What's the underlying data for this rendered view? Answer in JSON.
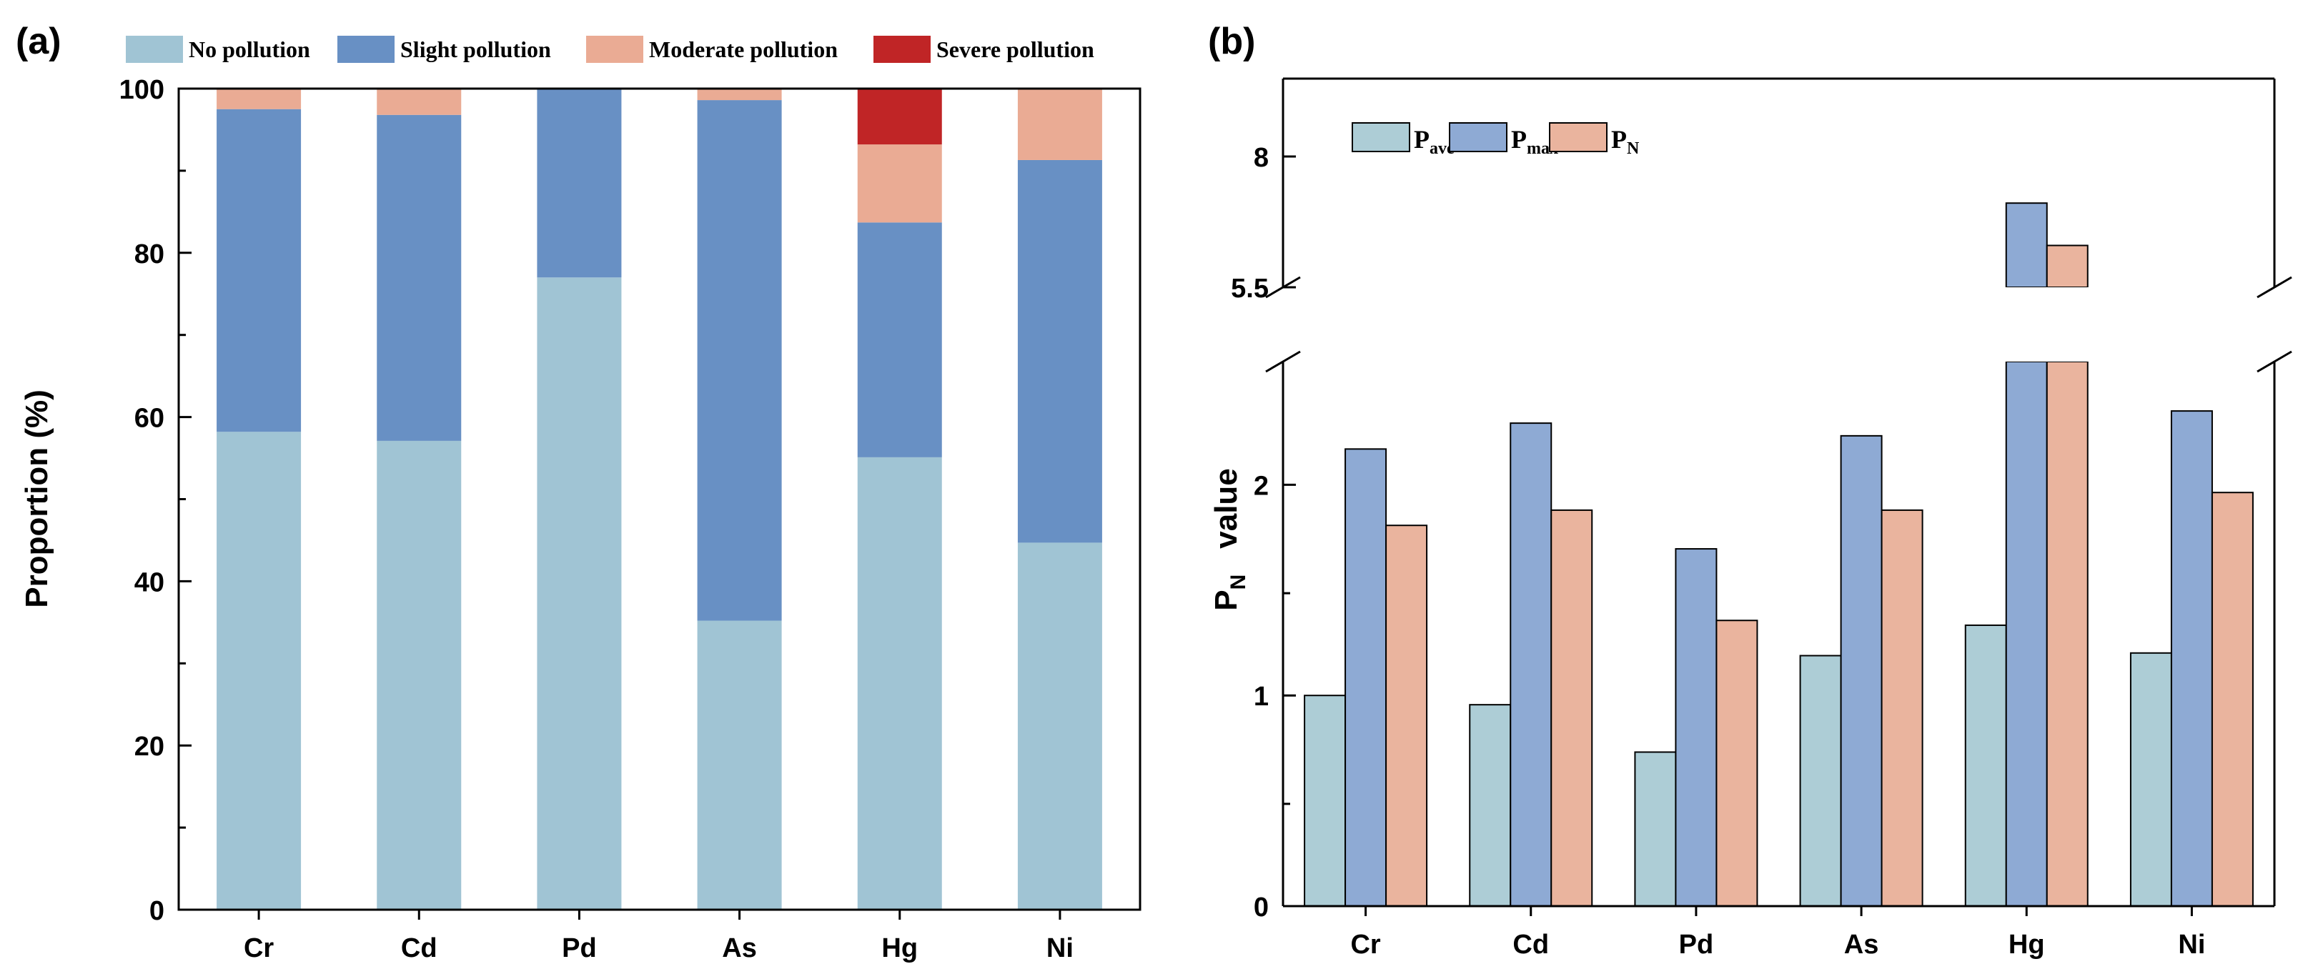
{
  "panels": {
    "a": {
      "label": "(a)"
    },
    "b": {
      "label": "(b)"
    }
  },
  "chart_data": [
    {
      "type": "bar",
      "stacked": true,
      "panel": "a",
      "title": "",
      "xlabel": "",
      "ylabel": "Proportion (%)",
      "ylim": [
        0,
        100
      ],
      "yticks": [
        0,
        20,
        40,
        60,
        80,
        100
      ],
      "grid": false,
      "legend_position": "top",
      "categories": [
        "Cr",
        "Cd",
        "Pd",
        "As",
        "Hg",
        "Ni"
      ],
      "series": [
        {
          "name": "No pollution",
          "color": "#a0c4d4",
          "values": [
            58.2,
            57.1,
            77.0,
            35.2,
            55.1,
            44.7
          ]
        },
        {
          "name": "Slight pollution",
          "color": "#6890c4",
          "values": [
            39.3,
            39.7,
            23.0,
            63.4,
            28.6,
            46.6
          ]
        },
        {
          "name": "Moderate pollution",
          "color": "#eaab94",
          "values": [
            2.5,
            3.2,
            0.0,
            1.4,
            9.5,
            8.7
          ]
        },
        {
          "name": "Severe pollution",
          "color": "#c02526",
          "values": [
            0.0,
            0.0,
            0.0,
            0.0,
            6.8,
            0.0
          ]
        }
      ]
    },
    {
      "type": "bar",
      "panel": "b",
      "title": "",
      "xlabel": "",
      "ylabel": {
        "main": "P",
        "sub": "N",
        "rest": "value"
      },
      "scale": "log",
      "broken_axis": {
        "lower_range": [
          0.5,
          3.0
        ],
        "upper_range": [
          5.5,
          10.0
        ],
        "break_between": [
          3.0,
          5.5
        ]
      },
      "yticks": [
        {
          "value": 0.5,
          "label": "0"
        },
        {
          "value": 1,
          "label": "1"
        },
        {
          "value": 2,
          "label": "2"
        },
        {
          "value": 5.5,
          "label": "5.5"
        },
        {
          "value": 8,
          "label": "8"
        }
      ],
      "minor_yticks": [
        0.7,
        1.4
      ],
      "grid": false,
      "legend_position": "top-left",
      "categories": [
        "Cr",
        "Cd",
        "Pd",
        "As",
        "Hg",
        "Ni"
      ],
      "series": [
        {
          "name": "P",
          "sub": "ave",
          "color": "#adcdd6",
          "values": [
            1.0,
            0.97,
            0.83,
            1.14,
            1.26,
            1.15
          ]
        },
        {
          "name": "P",
          "sub": "max",
          "color": "#8eaad4",
          "values": [
            2.25,
            2.45,
            1.62,
            2.35,
            7.0,
            2.55
          ]
        },
        {
          "name": "P",
          "sub": "N",
          "color": "#eab49e",
          "values": [
            1.75,
            1.84,
            1.28,
            1.84,
            6.2,
            1.95
          ]
        }
      ]
    }
  ]
}
